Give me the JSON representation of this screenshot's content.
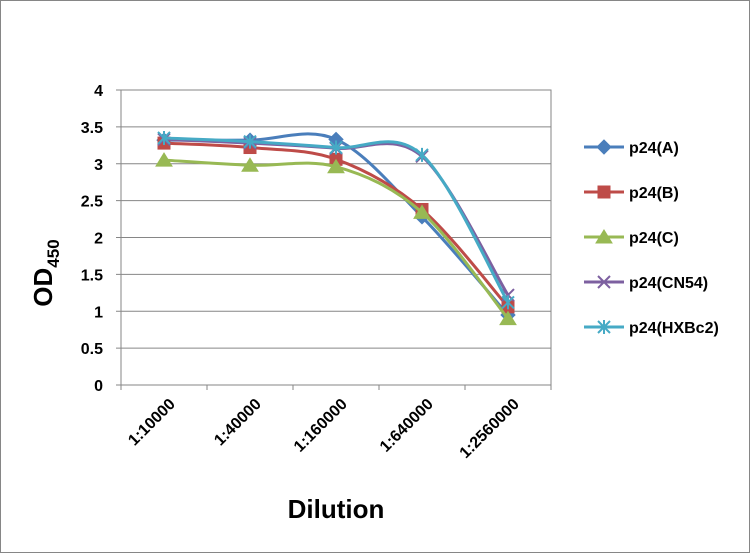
{
  "chart_data": {
    "type": "line",
    "xlabel": "Dilution",
    "ylabel": {
      "main": "OD",
      "sub": "450"
    },
    "categories": [
      "1:10000",
      "1:40000",
      "1:160000",
      "1:640000",
      "1:2560000"
    ],
    "ylim": [
      0,
      4
    ],
    "yticks": [
      0,
      0.5,
      1,
      1.5,
      2,
      2.5,
      3,
      3.5,
      4
    ],
    "ytick_labels": [
      "0",
      "0.5",
      "1",
      "1.5",
      "2",
      "2.5",
      "3",
      "3.5",
      "4"
    ],
    "grid": true,
    "legend_position": "right",
    "series": [
      {
        "name": "p24(A)",
        "values": [
          3.32,
          3.32,
          3.33,
          2.28,
          0.95
        ],
        "color": "#4a7ebb",
        "marker": "diamond"
      },
      {
        "name": "p24(B)",
        "values": [
          3.28,
          3.22,
          3.06,
          2.38,
          1.06
        ],
        "color": "#be4b48",
        "marker": "square"
      },
      {
        "name": "p24(C)",
        "values": [
          3.05,
          2.98,
          2.96,
          2.34,
          0.9
        ],
        "color": "#98b954",
        "marker": "triangle"
      },
      {
        "name": "p24(CN54)",
        "values": [
          3.33,
          3.28,
          3.21,
          3.1,
          1.22
        ],
        "color": "#7d60a0",
        "marker": "x"
      },
      {
        "name": "p24(HXBc2)",
        "values": [
          3.35,
          3.3,
          3.22,
          3.12,
          1.12
        ],
        "color": "#46aac5",
        "marker": "star"
      }
    ]
  }
}
